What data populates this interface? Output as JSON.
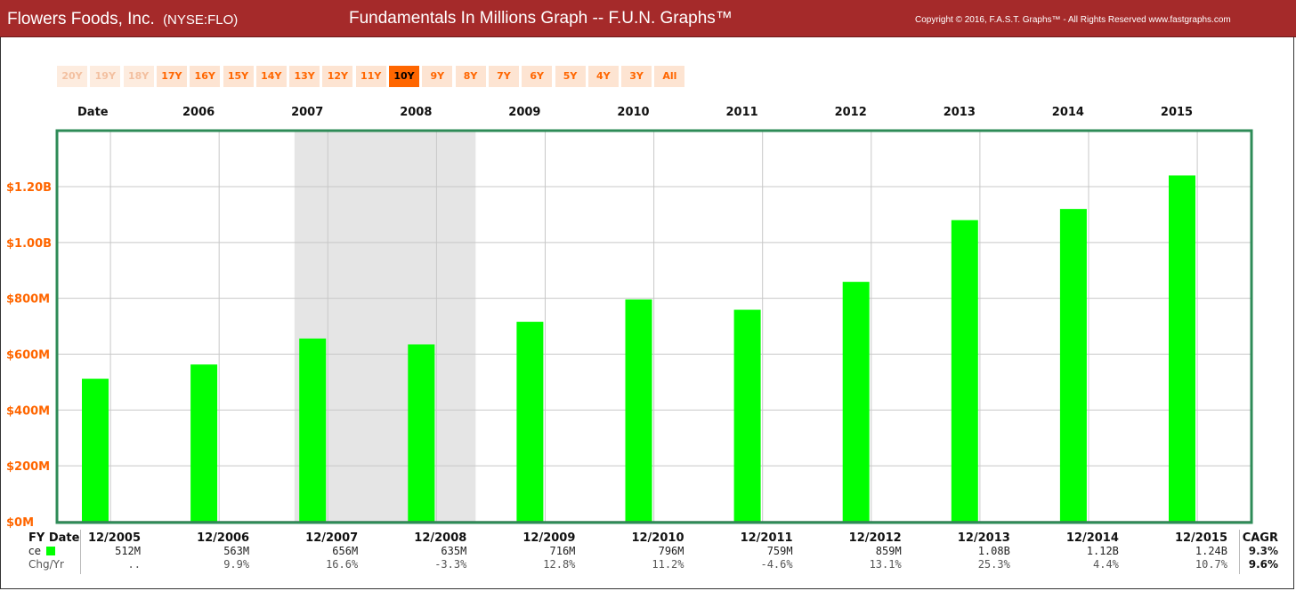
{
  "header": {
    "company": "Flowers Foods, Inc.",
    "ticker": "(NYSE:FLO)",
    "title": "Fundamentals In Millions Graph -- F.U.N. Graphs™",
    "copyright": "Copyright © 2016, F.A.S.T. Graphs™ - All Rights Reserved www.fastgraphs.com"
  },
  "range_buttons": [
    {
      "label": "20Y",
      "state": "disabled"
    },
    {
      "label": "19Y",
      "state": "disabled"
    },
    {
      "label": "18Y",
      "state": "disabled"
    },
    {
      "label": "17Y",
      "state": "enabled"
    },
    {
      "label": "16Y",
      "state": "enabled"
    },
    {
      "label": "15Y",
      "state": "enabled"
    },
    {
      "label": "14Y",
      "state": "enabled"
    },
    {
      "label": "13Y",
      "state": "enabled"
    },
    {
      "label": "12Y",
      "state": "enabled"
    },
    {
      "label": "11Y",
      "state": "enabled"
    },
    {
      "label": "10Y",
      "state": "active"
    },
    {
      "label": "9Y",
      "state": "enabled"
    },
    {
      "label": "8Y",
      "state": "enabled"
    },
    {
      "label": "7Y",
      "state": "enabled"
    },
    {
      "label": "6Y",
      "state": "enabled"
    },
    {
      "label": "5Y",
      "state": "enabled"
    },
    {
      "label": "4Y",
      "state": "enabled"
    },
    {
      "label": "3Y",
      "state": "enabled"
    },
    {
      "label": "All",
      "state": "enabled"
    }
  ],
  "date_header": "Date",
  "chart_data": {
    "type": "bar",
    "title": "",
    "xlabel": "",
    "ylabel": "",
    "x_top_labels": [
      "2006",
      "2007",
      "2008",
      "2009",
      "2010",
      "2011",
      "2012",
      "2013",
      "2014",
      "2015"
    ],
    "categories": [
      "12/2005",
      "12/2006",
      "12/2007",
      "12/2008",
      "12/2009",
      "12/2010",
      "12/2011",
      "12/2012",
      "12/2013",
      "12/2014",
      "12/2015"
    ],
    "series": [
      {
        "values": [
          512,
          563,
          656,
          635,
          716,
          796,
          759,
          859,
          1080,
          1120,
          1240
        ],
        "color": "#00ff00"
      }
    ],
    "value_unit": "millions",
    "ylim": [
      0,
      1400
    ],
    "yticks": [
      0,
      200,
      400,
      600,
      800,
      1000,
      1200
    ],
    "ytick_labels": [
      "$0M",
      "$200M",
      "$400M",
      "$600M",
      "$800M",
      "$1.00B",
      "$1.20B"
    ],
    "shaded_period": [
      "2007-10",
      "2009-06"
    ],
    "shaded_color": "#e5e5e5",
    "plot_border_color": "#2e8b57",
    "grid": true
  },
  "table": {
    "row_labels": [
      "FY Date",
      "ce",
      "Chg/Yr"
    ],
    "fy_dates": [
      "12/2005",
      "12/2006",
      "12/2007",
      "12/2008",
      "12/2009",
      "12/2010",
      "12/2011",
      "12/2012",
      "12/2013",
      "12/2014",
      "12/2015"
    ],
    "values": [
      "512M",
      "563M",
      "656M",
      "635M",
      "716M",
      "796M",
      "759M",
      "859M",
      "1.08B",
      "1.12B",
      "1.24B"
    ],
    "chg": [
      "..",
      "9.9%",
      "16.6%",
      "-3.3%",
      "12.8%",
      "11.2%",
      "-4.6%",
      "13.1%",
      "25.3%",
      "4.4%",
      "10.7%"
    ],
    "cagr_header": "CAGR",
    "cagr_values": "9.3%",
    "cagr_chg": "9.6%"
  }
}
